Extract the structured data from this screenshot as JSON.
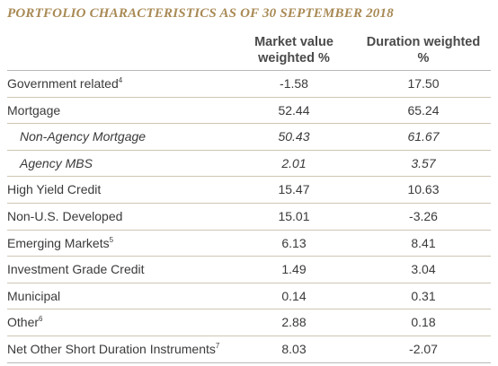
{
  "title": "PORTFOLIO CHARACTERISTICS AS OF 30 SEPTEMBER 2018",
  "columns": [
    {
      "line1": "Market value",
      "line2": "weighted %"
    },
    {
      "line1": "Duration weighted",
      "line2": "%"
    }
  ],
  "rows": [
    {
      "label": "Government related",
      "footnote": "4",
      "mv": "-1.58",
      "dur": "17.50",
      "sub": false
    },
    {
      "label": "Mortgage",
      "footnote": "",
      "mv": "52.44",
      "dur": "65.24",
      "sub": false
    },
    {
      "label": "Non-Agency Mortgage",
      "footnote": "",
      "mv": "50.43",
      "dur": "61.67",
      "sub": true
    },
    {
      "label": "Agency MBS",
      "footnote": "",
      "mv": "2.01",
      "dur": "3.57",
      "sub": true
    },
    {
      "label": "High Yield Credit",
      "footnote": "",
      "mv": "15.47",
      "dur": "10.63",
      "sub": false
    },
    {
      "label": "Non-U.S. Developed",
      "footnote": "",
      "mv": "15.01",
      "dur": "-3.26",
      "sub": false
    },
    {
      "label": "Emerging Markets",
      "footnote": "5",
      "mv": "6.13",
      "dur": "8.41",
      "sub": false
    },
    {
      "label": "Investment Grade Credit",
      "footnote": "",
      "mv": "1.49",
      "dur": "3.04",
      "sub": false
    },
    {
      "label": "Municipal",
      "footnote": "",
      "mv": "0.14",
      "dur": "0.31",
      "sub": false
    },
    {
      "label": "Other",
      "footnote": "6",
      "mv": "2.88",
      "dur": "0.18",
      "sub": false
    },
    {
      "label": "Net Other Short Duration Instruments",
      "footnote": "7",
      "mv": "8.03",
      "dur": "-2.07",
      "sub": false
    }
  ]
}
